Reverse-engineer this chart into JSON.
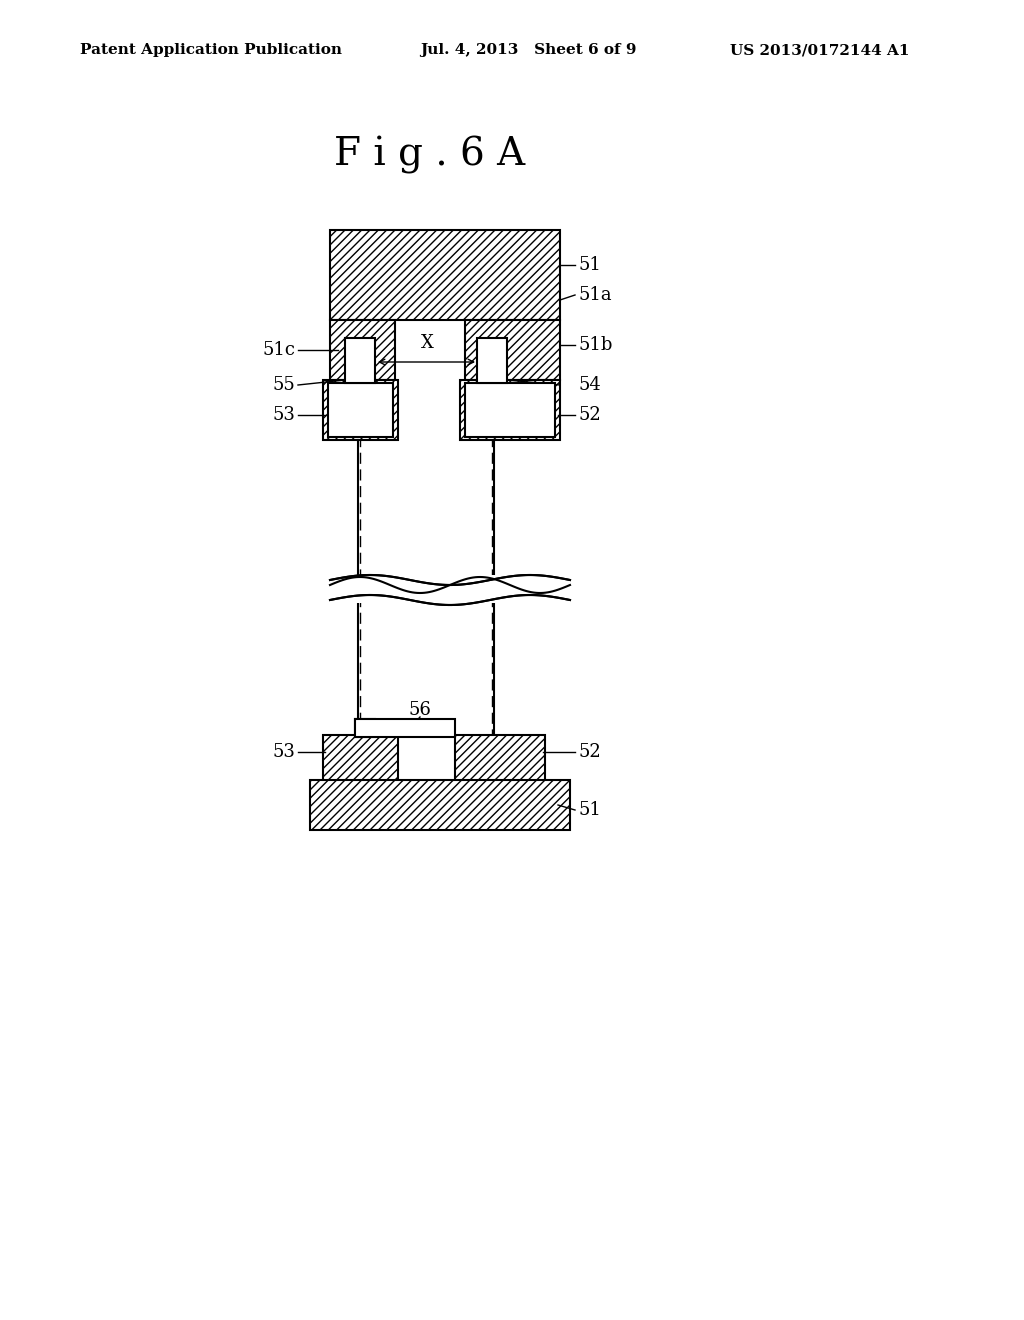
{
  "title": "Fig. 6A",
  "header_left": "Patent Application Publication",
  "header_mid": "Jul. 4, 2013   Sheet 6 of 9",
  "header_right": "US 2013/0172144 A1",
  "bg_color": "#ffffff",
  "hatch_color": "#000000",
  "line_color": "#000000",
  "fig_width": 10.24,
  "fig_height": 13.2
}
